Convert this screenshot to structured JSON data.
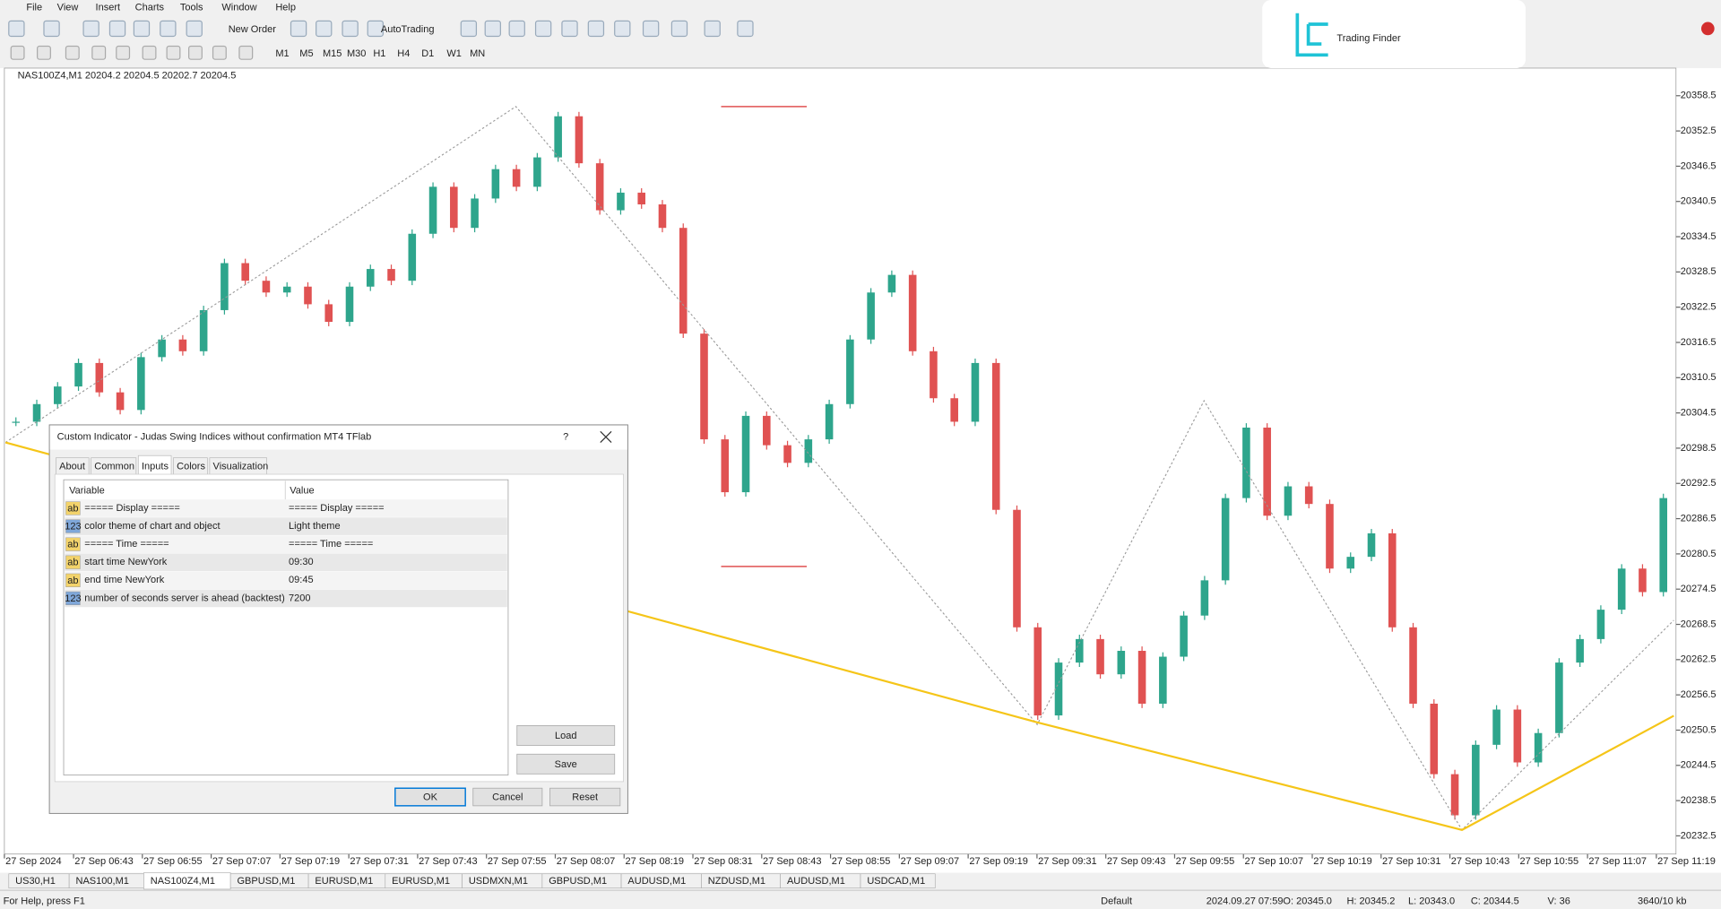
{
  "menu": [
    "File",
    "View",
    "Insert",
    "Charts",
    "Tools",
    "Window",
    "Help"
  ],
  "toolbar": {
    "new_order": "New Order",
    "autotrading": "AutoTrading",
    "timeframes": [
      "M1",
      "M5",
      "M15",
      "M30",
      "H1",
      "H4",
      "D1",
      "W1",
      "MN"
    ]
  },
  "logo": "Trading Finder",
  "chart": {
    "header": "NAS100Z4,M1  20204.2 20204.5 20202.7 20204.5",
    "ylim": [
      20229.4,
      20363.2
    ],
    "yticks": [
      20358.5,
      20352.5,
      20346.5,
      20340.5,
      20334.5,
      20328.5,
      20322.5,
      20316.5,
      20310.5,
      20304.5,
      20298.5,
      20292.5,
      20286.5,
      20280.5,
      20274.5,
      20268.5,
      20262.5,
      20256.5,
      20250.5,
      20244.5,
      20238.5,
      20232.5
    ],
    "xlabels": [
      "27 Sep 2024",
      "27 Sep 06:43",
      "27 Sep 06:55",
      "27 Sep 07:07",
      "27 Sep 07:19",
      "27 Sep 07:31",
      "27 Sep 07:43",
      "27 Sep 07:55",
      "27 Sep 08:07",
      "27 Sep 08:19",
      "27 Sep 08:31",
      "27 Sep 08:43",
      "27 Sep 08:55",
      "27 Sep 09:07",
      "27 Sep 09:19",
      "27 Sep 09:31",
      "27 Sep 09:43",
      "27 Sep 09:55",
      "27 Sep 10:07",
      "27 Sep 10:19",
      "27 Sep 10:31",
      "27 Sep 10:43",
      "27 Sep 10:55",
      "27 Sep 11:07",
      "27 Sep 11:19"
    ],
    "closes": [
      20303,
      20306,
      20309,
      20313,
      20308,
      20305,
      20314,
      20317,
      20315,
      20322,
      20330,
      20327,
      20325,
      20326,
      20323,
      20320,
      20326,
      20329,
      20327,
      20335,
      20343,
      20336,
      20341,
      20346,
      20343,
      20348,
      20355,
      20347,
      20339,
      20342,
      20340,
      20336,
      20318,
      20300,
      20291,
      20304,
      20299,
      20296,
      20300,
      20306,
      20317,
      20325,
      20328,
      20315,
      20307,
      20303,
      20313,
      20288,
      20268,
      20253,
      20262,
      20266,
      20260,
      20264,
      20255,
      20263,
      20270,
      20276,
      20290,
      20302,
      20287,
      20292,
      20289,
      20278,
      20280,
      20284,
      20268,
      20255,
      20243,
      20236,
      20248,
      20254,
      20245,
      20250,
      20262,
      20266,
      20271,
      20278,
      20274,
      20290
    ],
    "up_color": "#2ea58c",
    "down_color": "#e05252"
  },
  "dialog": {
    "title": "Custom Indicator - Judas Swing Indices without confirmation MT4 TFlab",
    "help": "?",
    "tabs": [
      "About",
      "Common",
      "Inputs",
      "Colors",
      "Visualization"
    ],
    "columns": [
      "Variable",
      "Value"
    ],
    "rows": [
      {
        "type": "ab",
        "variable": "===== Display =====",
        "value": "===== Display ====="
      },
      {
        "type": "123",
        "variable": "color theme of chart and object",
        "value": "Light theme"
      },
      {
        "type": "ab",
        "variable": "===== Time =====",
        "value": "===== Time ====="
      },
      {
        "type": "ab",
        "variable": "start time NewYork",
        "value": "09:30"
      },
      {
        "type": "ab",
        "variable": "end time NewYork",
        "value": "09:45"
      },
      {
        "type": "123",
        "variable": "number of seconds server is ahead (backtest)",
        "value": "7200"
      }
    ],
    "buttons": {
      "load": "Load",
      "save": "Save",
      "ok": "OK",
      "cancel": "Cancel",
      "reset": "Reset"
    }
  },
  "tabs": [
    "US30,H1",
    "NAS100,M1",
    "NAS100Z4,M1",
    "GBPUSD,M1",
    "EURUSD,M1",
    "EURUSD,M1",
    "USDMXN,M1",
    "GBPUSD,M1",
    "AUDUSD,M1",
    "NZDUSD,M1",
    "AUDUSD,M1",
    "USDCAD,M1"
  ],
  "status": [
    "For Help, press F1",
    "Default",
    "2024.09.27 07:59",
    "O: 20345.0",
    "H: 20345.2",
    "L: 20343.0",
    "C: 20344.5",
    "V: 36",
    "3640/10 kb"
  ]
}
